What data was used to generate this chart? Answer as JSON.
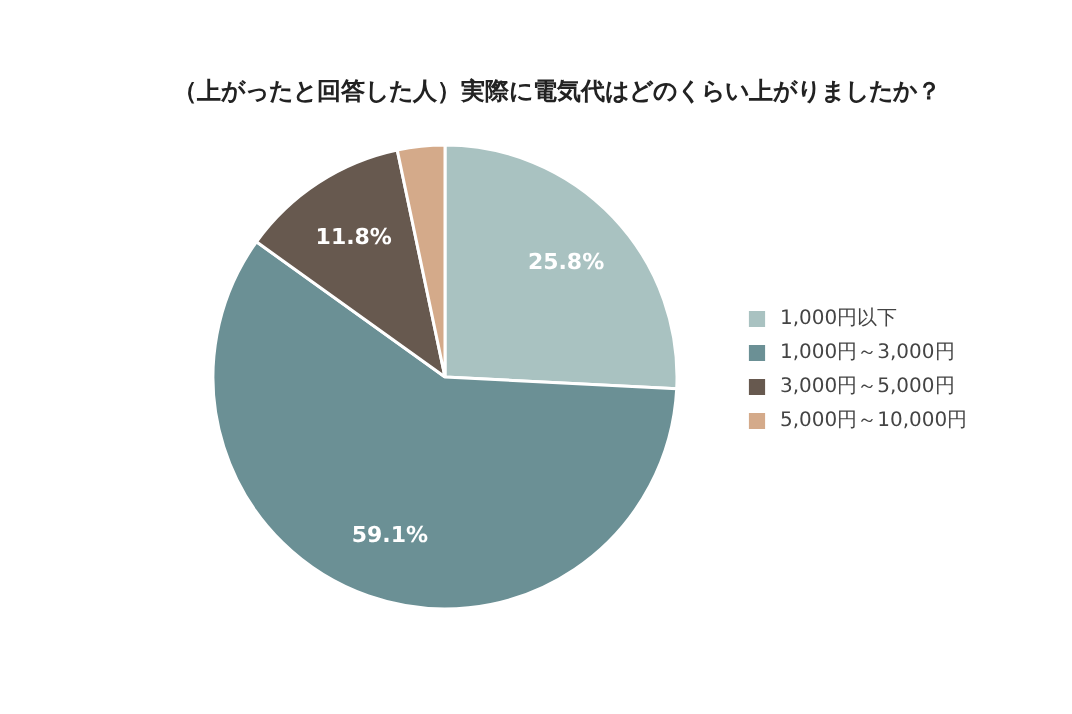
{
  "chart_data": {
    "type": "pie",
    "title": "（上がったと回答した人）実際に電気代はどのくらい上がりましたか？",
    "categories": [
      "1,000円以下",
      "1,000円～3,000円",
      "3,000円～5,000円",
      "5,000円～10,000円"
    ],
    "values": [
      25.8,
      59.1,
      11.8,
      3.3
    ],
    "value_labels": [
      "25.8%",
      "59.1%",
      "11.8%",
      null
    ],
    "colors": [
      "#a9c2c1",
      "#6b9095",
      "#67594f",
      "#d4aa8a"
    ],
    "legend": "right"
  }
}
